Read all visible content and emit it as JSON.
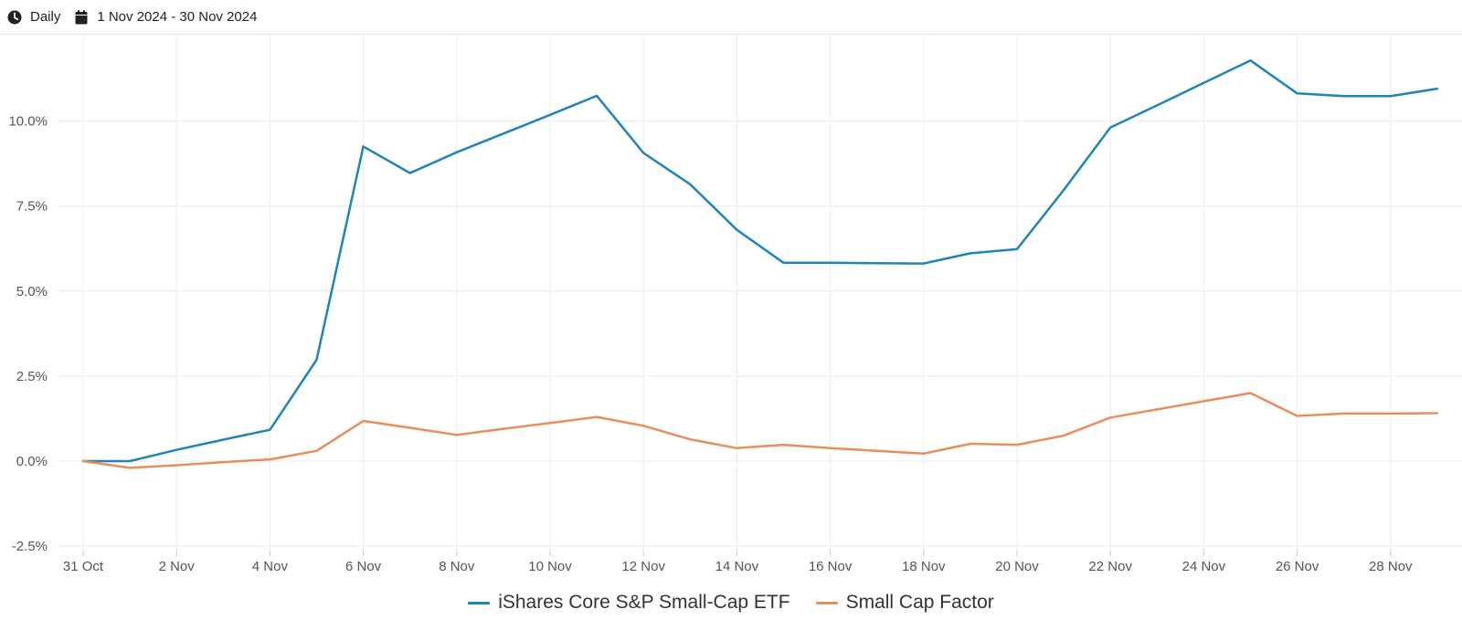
{
  "toolbar": {
    "frequency_label": "Daily",
    "date_range_label": "1 Nov 2024 - 30 Nov 2024",
    "frequency_icon": "clock-icon",
    "date_range_icon": "calendar-icon"
  },
  "chart_data": {
    "type": "line",
    "title": "",
    "xlabel": "",
    "ylabel": "",
    "x": [
      "31 Oct",
      "1 Nov",
      "2 Nov",
      "3 Nov",
      "4 Nov",
      "5 Nov",
      "6 Nov",
      "7 Nov",
      "8 Nov",
      "9 Nov",
      "10 Nov",
      "11 Nov",
      "12 Nov",
      "13 Nov",
      "14 Nov",
      "15 Nov",
      "16 Nov",
      "17 Nov",
      "18 Nov",
      "19 Nov",
      "20 Nov",
      "21 Nov",
      "22 Nov",
      "23 Nov",
      "24 Nov",
      "25 Nov",
      "26 Nov",
      "27 Nov",
      "28 Nov",
      "29 Nov"
    ],
    "x_tick_labels": [
      "31 Oct",
      "2 Nov",
      "4 Nov",
      "6 Nov",
      "8 Nov",
      "10 Nov",
      "12 Nov",
      "14 Nov",
      "16 Nov",
      "18 Nov",
      "20 Nov",
      "22 Nov",
      "24 Nov",
      "26 Nov",
      "28 Nov"
    ],
    "y_ticks": [
      -2.5,
      0,
      2.5,
      5,
      7.5,
      10
    ],
    "y_tick_labels": [
      "-2.5%",
      "0.0%",
      "2.5%",
      "5.0%",
      "7.5%",
      "10.0%"
    ],
    "ylim": [
      -2.5,
      12.6
    ],
    "grid": true,
    "legend_position": "bottom-center",
    "series": [
      {
        "name": "iShares Core S&P Small-Cap ETF",
        "color": "#1f84b8",
        "values": [
          0.0,
          0.0,
          0.33,
          0.63,
          0.92,
          2.98,
          9.25,
          8.47,
          9.08,
          9.63,
          10.18,
          10.74,
          9.06,
          8.14,
          6.8,
          5.83,
          5.83,
          5.82,
          5.81,
          6.11,
          6.23,
          7.97,
          9.81,
          10.46,
          11.12,
          11.78,
          10.81,
          10.73,
          10.73,
          10.95
        ]
      },
      {
        "name": "Small Cap Factor",
        "color": "#e88d5b",
        "values": [
          0.0,
          -0.2,
          -0.12,
          -0.03,
          0.05,
          0.3,
          1.18,
          0.98,
          0.77,
          0.95,
          1.12,
          1.3,
          1.04,
          0.64,
          0.38,
          0.48,
          0.38,
          0.3,
          0.22,
          0.51,
          0.48,
          0.75,
          1.28,
          1.52,
          1.76,
          2.0,
          1.33,
          1.4,
          1.4,
          1.41
        ]
      }
    ]
  }
}
